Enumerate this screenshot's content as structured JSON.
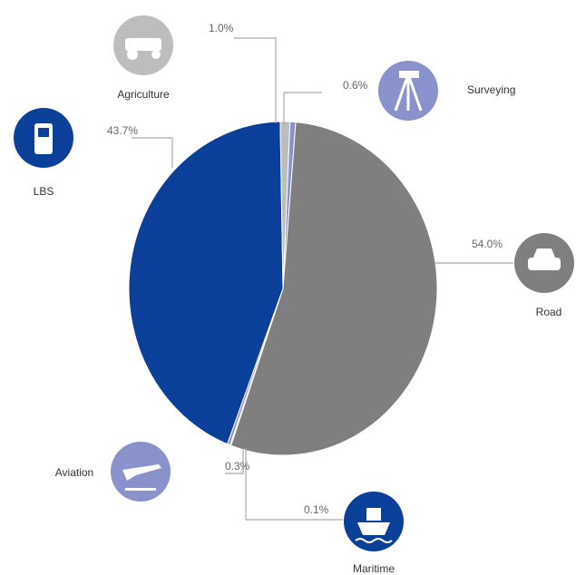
{
  "chart_data": {
    "type": "pie",
    "categories": [
      "Surveying",
      "Road",
      "Maritime",
      "Aviation",
      "LBS",
      "Agriculture"
    ],
    "values": [
      0.6,
      54.0,
      0.1,
      0.3,
      43.7,
      1.0
    ],
    "value_labels": [
      "0.6%",
      "54.0%",
      "0.1%",
      "0.3%",
      "43.7%",
      "1.0%"
    ],
    "colors": [
      "#8a92cc",
      "#7f7f7f",
      "#0a3f9a",
      "#8a92cc",
      "#0a3f9a",
      "#bdbdbd"
    ]
  }
}
